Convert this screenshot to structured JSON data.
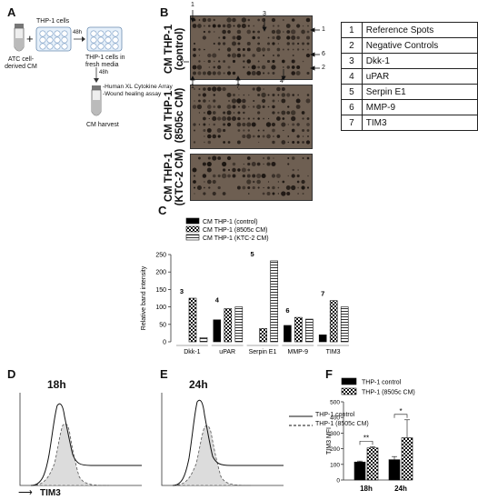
{
  "panels": {
    "A": "A",
    "B": "B",
    "C": "C",
    "D": "D",
    "E": "E",
    "F": "F"
  },
  "panelA": {
    "cm_label": "ATC cell-derived CM",
    "plus": "+",
    "thp1": "THP-1 cells",
    "t48a": "48h",
    "fresh": "THP-1 cells in fresh media",
    "t48b": "48h",
    "assay1": "-Human XL Cytokine Array",
    "assay2": "-Wound healing assay",
    "harvest": "CM harvest"
  },
  "panelB": {
    "blot_labels": [
      "CM THP-1\n(control)",
      "CM THP-1\n(8505c CM)",
      "CM THP-1\n(KTC-2 CM)"
    ],
    "markers": [
      "1",
      "3",
      "1",
      "6",
      "5",
      "4",
      "2",
      "1",
      "7",
      "4"
    ],
    "key": [
      {
        "num": "1",
        "name": "Reference Spots"
      },
      {
        "num": "2",
        "name": "Negative Controls"
      },
      {
        "num": "3",
        "name": "Dkk-1"
      },
      {
        "num": "4",
        "name": "uPAR"
      },
      {
        "num": "5",
        "name": "Serpin E1"
      },
      {
        "num": "6",
        "name": "MMP-9"
      },
      {
        "num": "7",
        "name": "TIM3"
      }
    ]
  },
  "chart_data": [
    {
      "type": "bar",
      "categories": [
        "Dkk-1",
        "uPAR",
        "Serpin E1",
        "MMP-9",
        "TIM3"
      ],
      "group_numbers": [
        "3",
        "4",
        "5",
        "6",
        "7"
      ],
      "series": [
        {
          "name": "CM THP-1 (control)",
          "values": [
            0,
            63,
            0,
            47,
            20
          ],
          "color": "#000000",
          "pattern": "solid"
        },
        {
          "name": "CM THP-1 (8505c CM)",
          "values": [
            125,
            95,
            38,
            70,
            118
          ],
          "color": "#000000",
          "pattern": "check"
        },
        {
          "name": "CM THP-1 (KTC-2 CM)",
          "values": [
            12,
            100,
            232,
            65,
            100
          ],
          "color": "#000000",
          "pattern": "hstripe"
        }
      ],
      "ylabel": "Relative band intensity",
      "ylim": [
        0,
        250
      ],
      "yticks": [
        "0",
        "50",
        "100",
        "150",
        "200",
        "250"
      ]
    },
    {
      "type": "bar",
      "categories": [
        "18h",
        "24h"
      ],
      "series": [
        {
          "name": "THP-1 control",
          "values": [
            115,
            130
          ],
          "color": "#000000",
          "pattern": "solid"
        },
        {
          "name": "THP-1 (8505c CM)",
          "values": [
            205,
            270
          ],
          "color": "#000000",
          "pattern": "check"
        }
      ],
      "ylabel": "TIM3 MFI",
      "ylim": [
        0,
        500
      ],
      "yticks": [
        "0",
        "100",
        "200",
        "300",
        "400",
        "500"
      ],
      "significance": [
        "**",
        "*"
      ]
    }
  ],
  "flow": {
    "D_title": "18h",
    "E_title": "24h",
    "xlabel": "TIM3",
    "legend": [
      "THP-1 control",
      "THP-1 (8505c CM)"
    ]
  }
}
